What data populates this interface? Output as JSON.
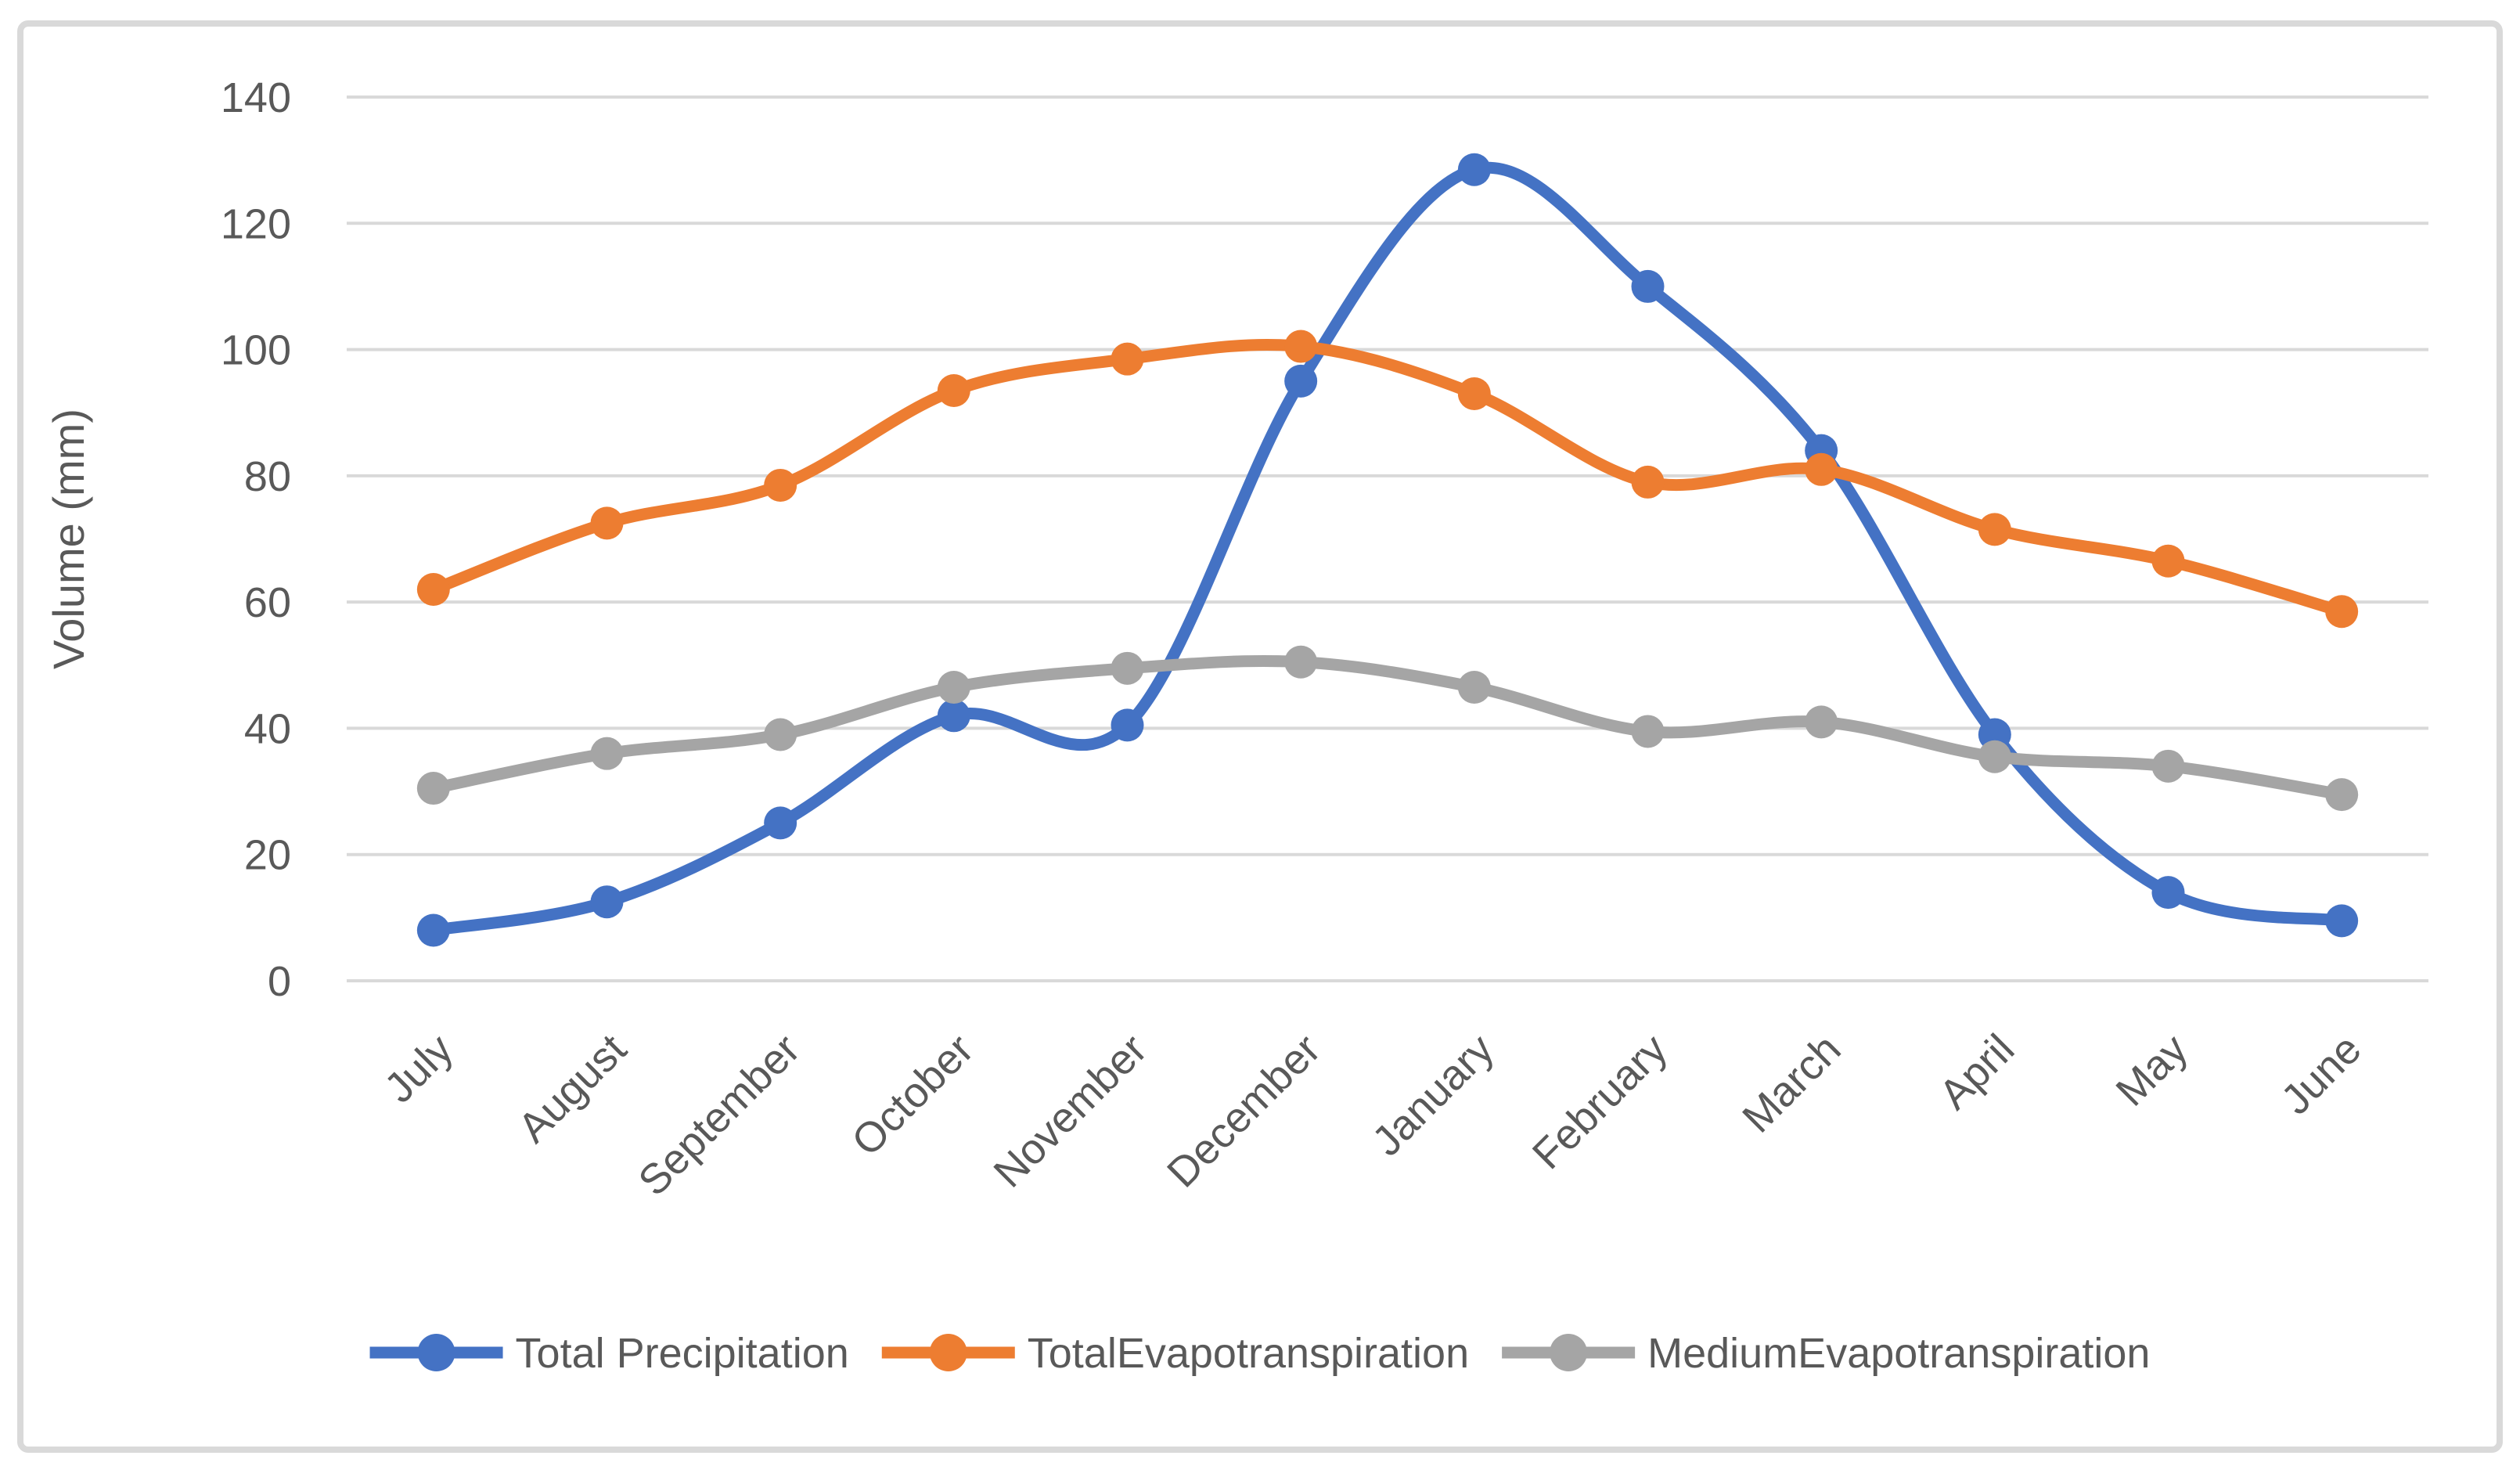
{
  "chart_data": {
    "type": "line",
    "title": "",
    "categories": [
      "July",
      "August",
      "September",
      "October",
      "November",
      "December",
      "January",
      "February",
      "March",
      "April",
      "May",
      "June"
    ],
    "series": [
      {
        "name": "Total Precipitation",
        "color": "#4472C4",
        "values": [
          8,
          12.5,
          25,
          42,
          40.5,
          95,
          128.5,
          110,
          84,
          39,
          14,
          9.5
        ]
      },
      {
        "name": "TotalEvapotranspiration",
        "color": "#ED7D31",
        "values": [
          62,
          72.5,
          78.5,
          93.5,
          98.5,
          100.5,
          93,
          79,
          81,
          71.5,
          66.5,
          58.5
        ]
      },
      {
        "name": "MediumEvapotranspiration",
        "color": "#A5A5A5",
        "values": [
          30.5,
          36,
          39,
          46.5,
          49.5,
          50.5,
          46.5,
          39.5,
          41,
          35.5,
          34,
          29.5
        ]
      }
    ],
    "xlabel": "",
    "ylabel": "Volume (mm)",
    "ylim": [
      0,
      140
    ],
    "yticks": [
      0,
      20,
      40,
      60,
      80,
      100,
      120,
      140
    ],
    "grid": true,
    "smooth": true,
    "marker": "circle",
    "legend_position": "bottom"
  },
  "colors": {
    "background": "#FFFFFF",
    "grid": "#D9D9D9",
    "frame_border": "#D9D9D9",
    "axis_text": "#595959"
  }
}
